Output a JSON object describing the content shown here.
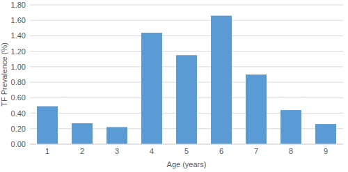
{
  "chart_data": {
    "type": "bar",
    "x_label": "Age (years)",
    "y_label": "TF Prevalence (%)",
    "categories": [
      "1",
      "2",
      "3",
      "4",
      "5",
      "6",
      "7",
      "8",
      "9"
    ],
    "values": [
      0.49,
      0.27,
      0.22,
      1.44,
      1.15,
      1.66,
      0.9,
      0.44,
      0.26
    ],
    "color": "#5b9bd5",
    "ylim": [
      0,
      1.8
    ],
    "yticks": [
      {
        "value": 0,
        "label": "0.00"
      },
      {
        "value": 0.2,
        "label": "0.20"
      },
      {
        "value": 0.4,
        "label": "0.40"
      },
      {
        "value": 0.6,
        "label": "0.60"
      },
      {
        "value": 0.8,
        "label": "0.80"
      },
      {
        "value": 1.0,
        "label": "1.00"
      },
      {
        "value": 1.2,
        "label": "1.20"
      },
      {
        "value": 1.4,
        "label": "1.40"
      },
      {
        "value": 1.6,
        "label": "1.60"
      },
      {
        "value": 1.8,
        "label": "1.80"
      }
    ],
    "grid": true
  }
}
